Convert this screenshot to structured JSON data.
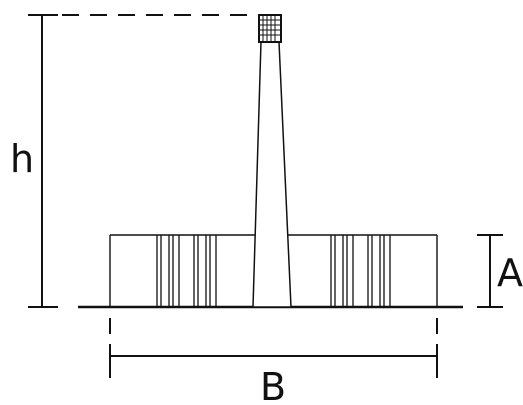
{
  "labels": {
    "height": "h",
    "base_height": "A",
    "base_width": "B"
  }
}
